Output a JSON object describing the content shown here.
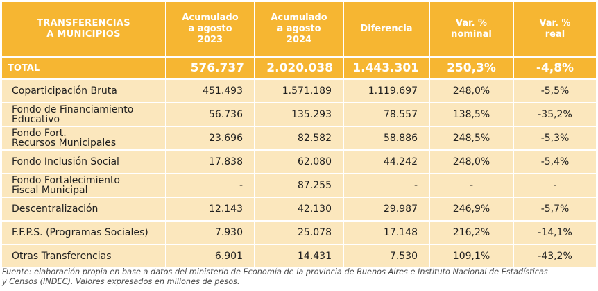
{
  "header": {
    "col0": "TRANSFERENCIAS\nA MUNICIPIOS",
    "col1": "Acumulado\na agosto\n2023",
    "col2": "Acumulado\na agosto\n2024",
    "col3": "Diferencia",
    "col4": "Var. %\nnominal",
    "col5": "Var. %\nreal"
  },
  "total": {
    "label": "TOTAL",
    "v2023": "576.737",
    "v2024": "2.020.038",
    "diff": "1.443.301",
    "nominal": "250,3%",
    "real": "-4,8%"
  },
  "rows": [
    {
      "label": "Coparticipación Bruta",
      "v2023": "451.493",
      "v2024": "1.571.189",
      "diff": "1.119.697",
      "nominal": "248,0%",
      "real": "-5,5%"
    },
    {
      "label": "Fondo de Financiamiento\nEducativo",
      "v2023": "56.736",
      "v2024": "135.293",
      "diff": "78.557",
      "nominal": "138,5%",
      "real": "-35,2%"
    },
    {
      "label": "Fondo Fort.\nRecursos Municipales",
      "v2023": "23.696",
      "v2024": "82.582",
      "diff": "58.886",
      "nominal": "248,5%",
      "real": "-5,3%"
    },
    {
      "label": "Fondo Inclusión Social",
      "v2023": "17.838",
      "v2024": "62.080",
      "diff": "44.242",
      "nominal": "248,0%",
      "real": "-5,4%"
    },
    {
      "label": "Fondo Fortalecimiento\nFiscal Municipal",
      "v2023": "-",
      "v2024": "87.255",
      "diff": "-",
      "nominal": "-",
      "real": "-"
    },
    {
      "label": "Descentralización",
      "v2023": "12.143",
      "v2024": "42.130",
      "diff": "29.987",
      "nominal": "246,9%",
      "real": "-5,7%"
    },
    {
      "label": "F.F.P.S. (Programas Sociales)",
      "v2023": "7.930",
      "v2024": "25.078",
      "diff": "17.148",
      "nominal": "216,2%",
      "real": "-14,1%"
    },
    {
      "label": "Otras Transferencias",
      "v2023": "6.901",
      "v2024": "14.431",
      "diff": "7.530",
      "nominal": "109,1%",
      "real": "-43,2%"
    }
  ],
  "footnote": "Fuente: elaboración propia en base a datos del ministerio de Economía de la provincia de Buenos Aires e Instituto Nacional de Estadísticas\ny Censos (INDEC). Valores expresados en millones de pesos.",
  "colors": {
    "header": "#f6b632",
    "row": "#fbe7bd"
  }
}
